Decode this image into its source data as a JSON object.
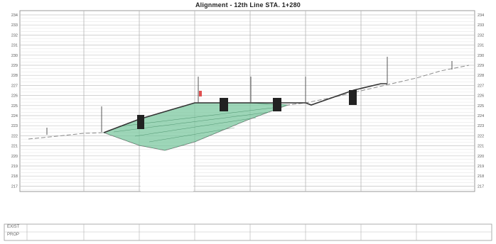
{
  "title": "Alignment - 12th Line STA. 1+280",
  "y_ticks_left": [
    "234",
    "233",
    "232",
    "231",
    "230",
    "229",
    "228",
    "227",
    "226",
    "225",
    "224",
    "223",
    "222",
    "221",
    "220",
    "219",
    "218",
    "217"
  ],
  "y_ticks_right": [
    "234",
    "233",
    "232",
    "231",
    "230",
    "229",
    "228",
    "227",
    "226",
    "225",
    "224",
    "223",
    "222",
    "221",
    "220",
    "219",
    "218",
    "217"
  ],
  "table": {
    "row1_label": "EXIST",
    "row2_label": "PROP"
  },
  "colors": {
    "fill_green": "#7cc8a0",
    "profile_line": "#333333",
    "existing_ground": "#888888",
    "marker": "#222222",
    "grid": "#c8c8c8"
  }
}
